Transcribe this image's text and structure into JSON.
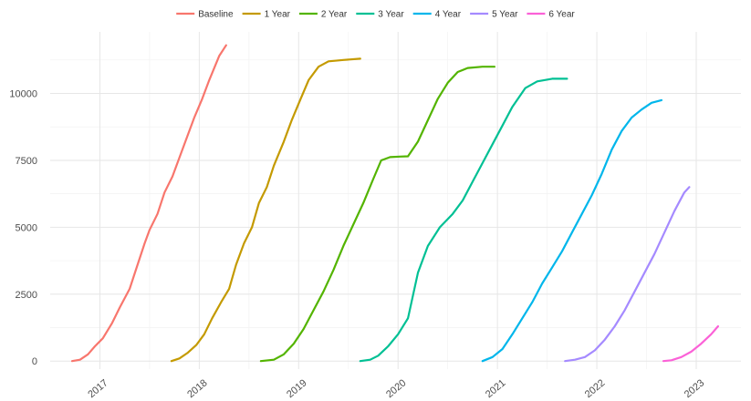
{
  "chart_data": {
    "type": "line",
    "title": "",
    "xlabel": "",
    "ylabel": "",
    "x_ticks": [
      "2017",
      "2018",
      "2019",
      "2020",
      "2021",
      "2022",
      "2023"
    ],
    "y_ticks": [
      "0",
      "2500",
      "5000",
      "7500",
      "10000"
    ],
    "xlim": [
      2016.5,
      2023.45
    ],
    "ylim": [
      -300,
      12300
    ],
    "grid": true,
    "legend_position": "top",
    "series": [
      {
        "name": "Baseline",
        "color": "#F8766D",
        "points": [
          [
            2016.72,
            0
          ],
          [
            2016.8,
            50
          ],
          [
            2016.88,
            250
          ],
          [
            2016.95,
            550
          ],
          [
            2017.03,
            850
          ],
          [
            2017.12,
            1400
          ],
          [
            2017.2,
            2000
          ],
          [
            2017.3,
            2700
          ],
          [
            2017.37,
            3500
          ],
          [
            2017.45,
            4400
          ],
          [
            2017.5,
            4900
          ],
          [
            2017.58,
            5500
          ],
          [
            2017.65,
            6300
          ],
          [
            2017.73,
            6900
          ],
          [
            2017.8,
            7600
          ],
          [
            2017.88,
            8400
          ],
          [
            2017.95,
            9100
          ],
          [
            2018.03,
            9800
          ],
          [
            2018.1,
            10500
          ],
          [
            2018.2,
            11400
          ],
          [
            2018.27,
            11800
          ]
        ]
      },
      {
        "name": "1 Year",
        "color": "#C49A00",
        "points": [
          [
            2017.72,
            0
          ],
          [
            2017.8,
            100
          ],
          [
            2017.88,
            300
          ],
          [
            2017.97,
            600
          ],
          [
            2018.05,
            1000
          ],
          [
            2018.13,
            1600
          ],
          [
            2018.22,
            2200
          ],
          [
            2018.3,
            2700
          ],
          [
            2018.37,
            3600
          ],
          [
            2018.45,
            4400
          ],
          [
            2018.53,
            5000
          ],
          [
            2018.6,
            5900
          ],
          [
            2018.68,
            6500
          ],
          [
            2018.75,
            7300
          ],
          [
            2018.85,
            8200
          ],
          [
            2018.93,
            9000
          ],
          [
            2019.02,
            9800
          ],
          [
            2019.1,
            10500
          ],
          [
            2019.2,
            11000
          ],
          [
            2019.3,
            11200
          ],
          [
            2019.45,
            11250
          ],
          [
            2019.62,
            11300
          ]
        ]
      },
      {
        "name": "2 Year",
        "color": "#53B400",
        "points": [
          [
            2018.62,
            0
          ],
          [
            2018.75,
            50
          ],
          [
            2018.85,
            250
          ],
          [
            2018.95,
            650
          ],
          [
            2019.05,
            1200
          ],
          [
            2019.15,
            1900
          ],
          [
            2019.25,
            2600
          ],
          [
            2019.35,
            3400
          ],
          [
            2019.45,
            4300
          ],
          [
            2019.55,
            5100
          ],
          [
            2019.65,
            5900
          ],
          [
            2019.75,
            6800
          ],
          [
            2019.83,
            7500
          ],
          [
            2019.92,
            7620
          ],
          [
            2020.02,
            7640
          ],
          [
            2020.1,
            7650
          ],
          [
            2020.2,
            8200
          ],
          [
            2020.3,
            9000
          ],
          [
            2020.4,
            9800
          ],
          [
            2020.5,
            10400
          ],
          [
            2020.6,
            10800
          ],
          [
            2020.7,
            10950
          ],
          [
            2020.85,
            11000
          ],
          [
            2020.97,
            11000
          ]
        ]
      },
      {
        "name": "3 Year",
        "color": "#00C094",
        "points": [
          [
            2019.62,
            0
          ],
          [
            2019.72,
            50
          ],
          [
            2019.8,
            200
          ],
          [
            2019.9,
            550
          ],
          [
            2020.0,
            1000
          ],
          [
            2020.1,
            1600
          ],
          [
            2020.2,
            3300
          ],
          [
            2020.3,
            4300
          ],
          [
            2020.42,
            5000
          ],
          [
            2020.55,
            5500
          ],
          [
            2020.65,
            6000
          ],
          [
            2020.75,
            6700
          ],
          [
            2020.85,
            7400
          ],
          [
            2020.95,
            8100
          ],
          [
            2021.05,
            8800
          ],
          [
            2021.15,
            9500
          ],
          [
            2021.28,
            10200
          ],
          [
            2021.4,
            10450
          ],
          [
            2021.55,
            10550
          ],
          [
            2021.7,
            10550
          ]
        ]
      },
      {
        "name": "4 Year",
        "color": "#00B6EB",
        "points": [
          [
            2020.85,
            0
          ],
          [
            2020.95,
            150
          ],
          [
            2021.05,
            450
          ],
          [
            2021.15,
            1000
          ],
          [
            2021.25,
            1600
          ],
          [
            2021.35,
            2200
          ],
          [
            2021.45,
            2900
          ],
          [
            2021.55,
            3500
          ],
          [
            2021.65,
            4100
          ],
          [
            2021.75,
            4800
          ],
          [
            2021.85,
            5500
          ],
          [
            2021.95,
            6200
          ],
          [
            2022.05,
            7000
          ],
          [
            2022.15,
            7900
          ],
          [
            2022.25,
            8600
          ],
          [
            2022.35,
            9100
          ],
          [
            2022.45,
            9400
          ],
          [
            2022.55,
            9650
          ],
          [
            2022.65,
            9750
          ]
        ]
      },
      {
        "name": "5 Year",
        "color": "#A58AFF",
        "points": [
          [
            2021.68,
            0
          ],
          [
            2021.78,
            50
          ],
          [
            2021.88,
            150
          ],
          [
            2021.98,
            400
          ],
          [
            2022.08,
            800
          ],
          [
            2022.18,
            1300
          ],
          [
            2022.28,
            1900
          ],
          [
            2022.38,
            2600
          ],
          [
            2022.48,
            3300
          ],
          [
            2022.58,
            4000
          ],
          [
            2022.68,
            4800
          ],
          [
            2022.78,
            5600
          ],
          [
            2022.88,
            6300
          ],
          [
            2022.93,
            6500
          ]
        ]
      },
      {
        "name": "6 Year",
        "color": "#FB61D7",
        "points": [
          [
            2022.67,
            0
          ],
          [
            2022.75,
            30
          ],
          [
            2022.85,
            150
          ],
          [
            2022.95,
            350
          ],
          [
            2023.05,
            650
          ],
          [
            2023.15,
            1000
          ],
          [
            2023.22,
            1300
          ]
        ]
      }
    ]
  }
}
